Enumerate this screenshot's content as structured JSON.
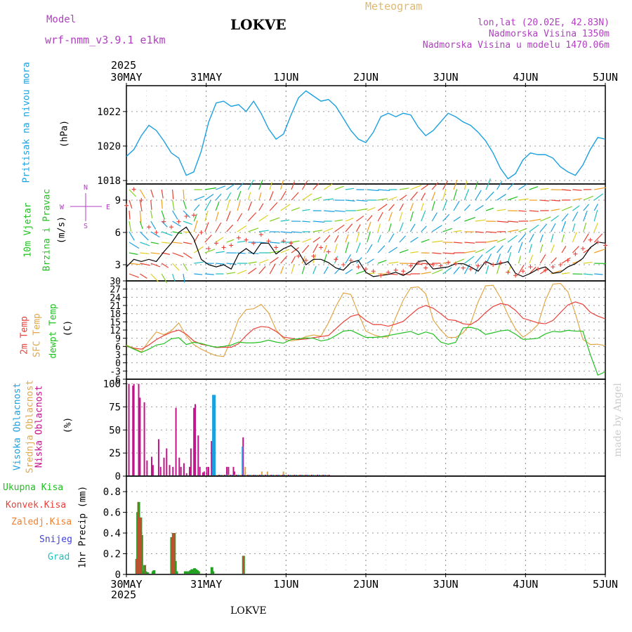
{
  "header": {
    "model_label": "Model",
    "model_name": "wrf-nmm_v3.9.1 e1km",
    "station": "LOKVE",
    "meteogram": "Meteogram",
    "lonlat": "lon,lat (20.02E, 42.83N)",
    "altitude": "Nadmorska Visina 1350m",
    "model_altitude": "Nadmorska Visina u modelu 1470.06m",
    "footer_station": "LOKVE",
    "credit": "made by Angel",
    "year_top": "2025",
    "year_bottom": "2025"
  },
  "time_axis": {
    "labels": [
      "30MAY",
      "31MAY",
      "1JUN",
      "2JUN",
      "3JUN",
      "4JUN",
      "5JUN"
    ]
  },
  "colors": {
    "pressure": "#1ba0e0",
    "temp2m": "#e8413a",
    "sfc": "#e0a84a",
    "dew": "#22c022",
    "high_cloud": "#1ba0e0",
    "mid_cloud": "#e0a84a",
    "low_cloud": "#c0158a",
    "total_precip": "#22a022",
    "conv_precip": "#e8413a",
    "frozen": "#f08030",
    "snow": "#4040e0",
    "hail": "#20c0c0",
    "purple": "#b040c0"
  },
  "chart_data": [
    {
      "type": "line",
      "ylabel_main": "Pritisak na nivou mora",
      "ylabel_unit": "(hPa)",
      "ylim": [
        1017.8,
        1023.5
      ],
      "yticks": [
        1018,
        1020,
        1022
      ],
      "series": [
        {
          "values": [
            1019.4,
            1019.8,
            1020.6,
            1021.2,
            1020.9,
            1020.3,
            1019.6,
            1019.3,
            1018.3,
            1018.5,
            1019.7,
            1021.4,
            1022.5,
            1022.6,
            1022.3,
            1022.4,
            1022.0,
            1022.6,
            1021.9,
            1021.0,
            1020.4,
            1020.7,
            1021.8,
            1022.8,
            1023.2,
            1022.9,
            1022.6,
            1022.7,
            1022.3,
            1021.6,
            1020.9,
            1020.4,
            1020.2,
            1020.8,
            1021.7,
            1021.9,
            1021.7,
            1021.9,
            1021.8,
            1021.1,
            1020.6,
            1020.9,
            1021.4,
            1021.9,
            1021.7,
            1021.4,
            1021.2,
            1020.8,
            1020.3,
            1019.6,
            1018.7,
            1018.1,
            1018.4,
            1019.2,
            1019.6,
            1019.5,
            1019.5,
            1019.3,
            1018.8,
            1018.5,
            1018.3,
            1018.9,
            1019.8,
            1020.5,
            1020.4
          ]
        }
      ]
    },
    {
      "type": "line",
      "ylabel_main": "10m Vjetar",
      "ylabel_sub": "Brzina i Pravac",
      "ylabel_unit": "(m/s)",
      "ylim": [
        1.5,
        10.5
      ],
      "yticks": [
        3,
        6,
        9
      ],
      "compass": [
        "N",
        "W",
        "E",
        "S"
      ],
      "series": [
        {
          "values": [
            2.8,
            3.5,
            3.3,
            3.5,
            3.3,
            4.2,
            5.0,
            6.0,
            6.5,
            5.4,
            3.5,
            3.0,
            2.8,
            3.0,
            2.6,
            4.0,
            4.5,
            4.0,
            5.0,
            5.0,
            4.0,
            4.5,
            4.8,
            4.2,
            3.0,
            3.5,
            3.5,
            3.2,
            2.7,
            2.5,
            3.2,
            3.4,
            2.3,
            1.9,
            2.0,
            2.1,
            2.3,
            2.0,
            2.4,
            3.3,
            3.4,
            2.6,
            2.7,
            2.8,
            3.1,
            3.1,
            2.8,
            2.4,
            3.3,
            3.0,
            3.1,
            3.3,
            2.2,
            1.9,
            2.2,
            2.6,
            2.8,
            2.2,
            2.3,
            2.8,
            3.1,
            3.6,
            4.6,
            5.1,
            5.0
          ]
        },
        {
          "values": [
            8.5,
            10.0,
            9.0,
            6.5,
            6.0,
            7.0,
            6.5,
            7.0,
            7.5,
            7.6,
            6.0,
            4.5,
            5.0,
            4.6,
            4.8,
            5.5,
            5.3,
            5.0,
            5.8,
            5.2,
            4.6,
            5.2,
            5.0,
            3.8,
            3.4,
            3.8,
            4.6,
            4.2,
            3.5,
            3.0,
            3.4,
            2.8,
            2.6,
            2.4,
            2.0,
            2.3,
            2.5,
            2.4,
            2.9,
            3.2,
            2.7,
            3.0,
            2.9,
            3.2,
            3.1,
            2.7,
            2.6,
            2.9,
            3.2,
            3.0,
            3.2,
            2.3,
            2.0,
            2.4,
            2.8,
            2.6,
            2.5,
            2.8,
            3.0,
            3.4,
            4.0,
            4.5,
            5.3,
            5.1,
            4.8
          ]
        }
      ]
    },
    {
      "type": "line",
      "ylabel_a": "2m Temp",
      "ylabel_b": "SFC Temp",
      "ylabel_c": "dewpt Temp",
      "ylabel_unit": "(C)",
      "ylim": [
        -6,
        30
      ],
      "yticks": [
        -6,
        -3,
        0,
        3,
        6,
        9,
        12,
        15,
        18,
        21,
        24,
        27,
        30
      ],
      "series": [
        {
          "name": "2m Temp",
          "values": [
            6.0,
            5.4,
            5.0,
            6.5,
            8.5,
            10.0,
            11.2,
            12.0,
            10.5,
            8.0,
            6.8,
            6.3,
            5.6,
            5.7,
            5.7,
            7.0,
            10.0,
            12.4,
            13.3,
            13.0,
            11.5,
            9.4,
            9.0,
            8.5,
            8.7,
            9.2,
            9.6,
            10.0,
            12.5,
            15.0,
            17.0,
            17.7,
            15.5,
            14.0,
            14.0,
            13.4,
            14.2,
            15.2,
            17.6,
            19.9,
            21.0,
            20.0,
            18.0,
            15.8,
            15.5,
            14.3,
            14.0,
            15.7,
            18.4,
            20.6,
            21.7,
            21.2,
            19.2,
            16.3,
            15.5,
            14.6,
            14.3,
            15.5,
            18.4,
            21.2,
            22.3,
            21.4,
            18.5,
            17.1,
            16.1
          ]
        },
        {
          "name": "SFC Temp",
          "values": [
            6.5,
            5.3,
            4.0,
            8.0,
            11.3,
            10.3,
            11.7,
            14.6,
            9.8,
            6.7,
            5.0,
            3.7,
            2.6,
            2.3,
            8.5,
            16.0,
            19.5,
            19.8,
            21.4,
            18.3,
            12.1,
            8.9,
            8.0,
            8.5,
            9.6,
            10.2,
            9.8,
            14.6,
            20.7,
            25.6,
            25.0,
            18.1,
            11.6,
            10.3,
            9.5,
            9.5,
            16.7,
            23.0,
            27.5,
            27.8,
            25.3,
            15.7,
            12.0,
            9.3,
            9.3,
            11.0,
            14.5,
            22.3,
            28.2,
            28.4,
            23.8,
            17.5,
            12.4,
            9.4,
            11.3,
            14.0,
            23.0,
            28.8,
            29.1,
            26.0,
            18.0,
            8.6,
            6.7,
            6.8,
            6.3
          ]
        },
        {
          "name": "dewpt Temp",
          "values": [
            6.3,
            5.0,
            3.8,
            5.0,
            6.5,
            7.0,
            8.8,
            9.2,
            6.7,
            7.5,
            7.1,
            6.3,
            5.7,
            6.0,
            6.5,
            7.6,
            7.3,
            7.3,
            7.6,
            8.3,
            7.6,
            7.2,
            8.5,
            8.8,
            9.1,
            9.0,
            8.0,
            8.5,
            10.0,
            11.6,
            11.9,
            10.6,
            9.3,
            9.3,
            9.5,
            10.0,
            10.5,
            11.0,
            11.5,
            10.3,
            11.3,
            10.5,
            7.6,
            6.8,
            7.5,
            12.8,
            13.0,
            12.3,
            10.4,
            11.0,
            11.7,
            12.0,
            10.5,
            8.6,
            8.7,
            9.0,
            10.6,
            11.5,
            11.3,
            11.9,
            11.6,
            11.6,
            3.0,
            -4.5,
            -3.3
          ]
        }
      ]
    },
    {
      "type": "bar",
      "ylabel_a": "Visoka Oblacnost",
      "ylabel_b": "Srednja Oblacnost",
      "ylabel_c": "Niska Oblacnost",
      "ylabel_unit": "(%)",
      "ylim": [
        0,
        105
      ],
      "yticks": [
        0,
        25,
        50,
        75,
        100
      ],
      "low": [
        [
          0.75,
          100
        ],
        [
          1.95,
          98
        ],
        [
          2.25,
          100
        ],
        [
          3.7,
          100
        ],
        [
          4.1,
          85
        ],
        [
          5.4,
          80
        ],
        [
          6.2,
          17
        ],
        [
          7.6,
          21
        ],
        [
          8.0,
          12
        ],
        [
          9.7,
          40
        ],
        [
          10.3,
          10
        ],
        [
          11.3,
          20
        ],
        [
          12.1,
          30
        ],
        [
          13.0,
          12
        ],
        [
          14.0,
          10
        ],
        [
          14.9,
          74
        ],
        [
          15.9,
          20
        ],
        [
          16.4,
          10
        ],
        [
          17.3,
          14
        ],
        [
          18.1,
          3
        ],
        [
          19.0,
          10
        ],
        [
          19.4,
          30
        ],
        [
          20.3,
          74
        ],
        [
          20.7,
          78
        ],
        [
          21.6,
          44
        ],
        [
          22.1,
          10
        ],
        [
          23.0,
          4
        ],
        [
          23.4,
          5
        ],
        [
          24.2,
          10
        ],
        [
          24.7,
          10
        ],
        [
          25.6,
          38
        ],
        [
          25.9,
          25
        ],
        [
          30.2,
          10
        ],
        [
          30.7,
          10
        ],
        [
          32.2,
          10
        ],
        [
          32.5,
          5
        ],
        [
          35.1,
          42
        ]
      ],
      "high": [
        [
          26.2,
          88
        ],
        [
          35.1,
          32
        ]
      ],
      "mid": [
        [
          35.3,
          10
        ],
        [
          40.3,
          5
        ],
        [
          42.0,
          5
        ],
        [
          46.8,
          5
        ]
      ]
    },
    {
      "type": "bar",
      "ylabel_a": "Ukupna Kisa",
      "ylabel_b": "Konvek.Kisa",
      "ylabel_c": "Zaledj.Kisa",
      "ylabel_d": "Snijeg",
      "ylabel_e": "Grad",
      "ylabel_unit": "1hr Precip (mm)",
      "ylim": [
        0,
        0.95
      ],
      "yticks": [
        0,
        0.2,
        0.4,
        0.6,
        0.8
      ],
      "total": [
        [
          3.0,
          0.15
        ],
        [
          3.3,
          0.6
        ],
        [
          3.6,
          0.7
        ],
        [
          3.9,
          0.55
        ],
        [
          4.2,
          0.55
        ],
        [
          4.5,
          0.38
        ],
        [
          5.1,
          0.03
        ],
        [
          5.4,
          0.09
        ],
        [
          5.7,
          0.03
        ],
        [
          6.3,
          0.02
        ],
        [
          7.9,
          0.03
        ],
        [
          8.2,
          0.04
        ],
        [
          13.5,
          0.36
        ],
        [
          14.0,
          0.4
        ],
        [
          14.3,
          0.4
        ],
        [
          14.6,
          0.13
        ],
        [
          15.0,
          0.03
        ],
        [
          17.6,
          0.03
        ],
        [
          18.1,
          0.03
        ],
        [
          18.7,
          0.03
        ],
        [
          19.2,
          0.04
        ],
        [
          19.6,
          0.05
        ],
        [
          20.0,
          0.05
        ],
        [
          20.4,
          0.06
        ],
        [
          20.8,
          0.05
        ],
        [
          21.2,
          0.04
        ],
        [
          21.6,
          0.03
        ],
        [
          25.6,
          0.07
        ],
        [
          25.9,
          0.03
        ],
        [
          35.1,
          0.18
        ]
      ],
      "conv": [
        [
          3.0,
          0.15
        ],
        [
          3.3,
          0.6
        ],
        [
          3.6,
          0.7
        ],
        [
          3.9,
          0.55
        ],
        [
          4.2,
          0.55
        ],
        [
          4.5,
          0.38
        ],
        [
          5.4,
          0.09
        ],
        [
          13.5,
          0.36
        ],
        [
          14.0,
          0.4
        ],
        [
          14.3,
          0.4
        ],
        [
          35.1,
          0.18
        ]
      ]
    }
  ]
}
